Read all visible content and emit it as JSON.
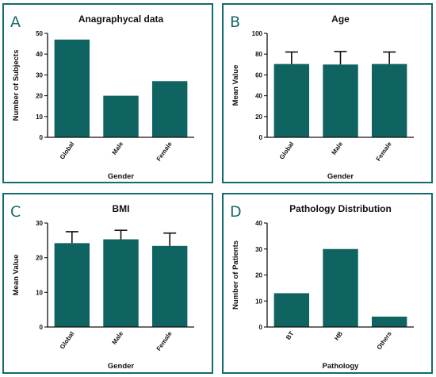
{
  "colors": {
    "bar": "#0f6461",
    "frame": "#146b69",
    "axis": "#111111"
  },
  "chart_data": [
    {
      "panel_letter": "A",
      "type": "bar",
      "title": "Anagraphycal data",
      "xlabel": "Gender",
      "ylabel": "Number of Subjects",
      "categories": [
        "Global",
        "Male",
        "Female"
      ],
      "values": [
        47,
        20,
        27
      ],
      "error": null,
      "ylim": [
        0,
        50
      ],
      "yticks": [
        "0",
        "10",
        "20",
        "30",
        "40",
        "50"
      ],
      "grid": false
    },
    {
      "panel_letter": "B",
      "type": "bar",
      "title": "Age",
      "xlabel": "Gender",
      "ylabel": "Mean Value",
      "categories": [
        "Global",
        "Male",
        "Female"
      ],
      "values": [
        70.5,
        70,
        70.5
      ],
      "error": [
        11.5,
        12.5,
        11.5
      ],
      "ylim": [
        0,
        100
      ],
      "yticks": [
        "0",
        "20",
        "40",
        "60",
        "80",
        "100"
      ],
      "grid": false
    },
    {
      "panel_letter": "C",
      "type": "bar",
      "title": "BMI",
      "xlabel": "Gender",
      "ylabel": "Mean Value",
      "categories": [
        "Global",
        "Male",
        "Female"
      ],
      "values": [
        24.2,
        25.3,
        23.4
      ],
      "error": [
        3.3,
        2.6,
        3.7
      ],
      "ylim": [
        0,
        30
      ],
      "yticks": [
        "0",
        "10",
        "20",
        "30"
      ],
      "grid": false
    },
    {
      "panel_letter": "D",
      "type": "bar",
      "title": "Pathology Distribution",
      "xlabel": "Pathology",
      "ylabel": "Number of Patients",
      "categories": [
        "BT",
        "HB",
        "Others"
      ],
      "values": [
        13,
        30,
        4
      ],
      "error": null,
      "ylim": [
        0,
        40
      ],
      "yticks": [
        "0",
        "10",
        "20",
        "30",
        "40"
      ],
      "grid": false
    }
  ]
}
